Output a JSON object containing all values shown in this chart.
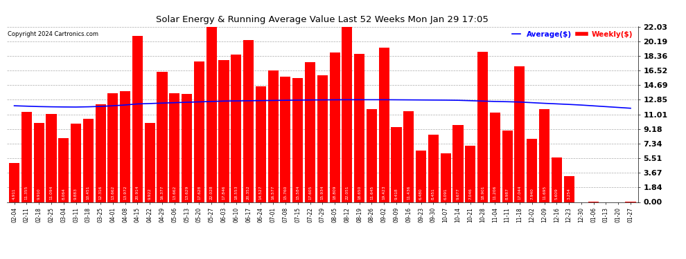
{
  "title": "Solar Energy & Running Average Value Last 52 Weeks Mon Jan 29 17:05",
  "copyright": "Copyright 2024 Cartronics.com",
  "bar_color": "#FF0000",
  "avg_line_color": "#0000FF",
  "background_color": "#FFFFFF",
  "plot_bg_color": "#FFFFFF",
  "grid_color": "#AAAAAA",
  "yticks": [
    0.0,
    1.84,
    3.67,
    5.51,
    7.34,
    9.18,
    11.01,
    12.85,
    14.69,
    16.52,
    18.36,
    20.19,
    22.03
  ],
  "categories": [
    "02-04",
    "02-11",
    "02-18",
    "02-25",
    "03-04",
    "03-11",
    "03-18",
    "03-25",
    "04-01",
    "04-08",
    "04-15",
    "04-22",
    "04-29",
    "05-06",
    "05-13",
    "05-20",
    "05-27",
    "06-03",
    "06-10",
    "06-17",
    "06-24",
    "07-01",
    "07-08",
    "07-15",
    "07-22",
    "07-29",
    "08-05",
    "08-12",
    "08-19",
    "08-26",
    "09-02",
    "09-09",
    "09-16",
    "09-23",
    "09-30",
    "10-07",
    "10-14",
    "10-21",
    "10-28",
    "11-04",
    "11-11",
    "11-18",
    "12-02",
    "12-09",
    "12-16",
    "12-23",
    "12-30",
    "01-06",
    "01-13",
    "01-20",
    "01-27"
  ],
  "weekly_values": [
    4.911,
    11.355,
    9.91,
    11.094,
    8.064,
    9.883,
    10.451,
    12.316,
    13.662,
    13.972,
    20.914,
    9.922,
    16.377,
    13.662,
    13.629,
    17.628,
    22.028,
    17.846,
    18.553,
    20.352,
    14.527,
    16.577,
    15.76,
    15.584,
    17.605,
    15.934,
    18.809,
    22.051,
    18.65,
    11.645,
    19.423,
    9.418,
    11.436,
    6.48,
    8.451,
    6.091,
    9.677,
    7.046,
    18.901,
    11.206,
    8.987,
    17.044,
    7.94,
    11.695,
    5.609,
    3.254,
    0.0,
    0.013,
    0.0,
    0.0,
    0.013
  ],
  "avg_values": [
    12.1,
    12.05,
    12.0,
    11.97,
    11.95,
    11.94,
    11.97,
    12.02,
    12.1,
    12.2,
    12.33,
    12.38,
    12.44,
    12.49,
    12.54,
    12.59,
    12.64,
    12.69,
    12.71,
    12.73,
    12.75,
    12.77,
    12.79,
    12.81,
    12.83,
    12.84,
    12.85,
    12.86,
    12.86,
    12.86,
    12.86,
    12.85,
    12.84,
    12.83,
    12.82,
    12.81,
    12.79,
    12.74,
    12.69,
    12.64,
    12.61,
    12.57,
    12.49,
    12.41,
    12.34,
    12.27,
    12.19,
    12.09,
    11.99,
    11.89,
    11.79
  ],
  "legend_avg_label": "Average($)",
  "legend_weekly_label": "Weekly($)"
}
